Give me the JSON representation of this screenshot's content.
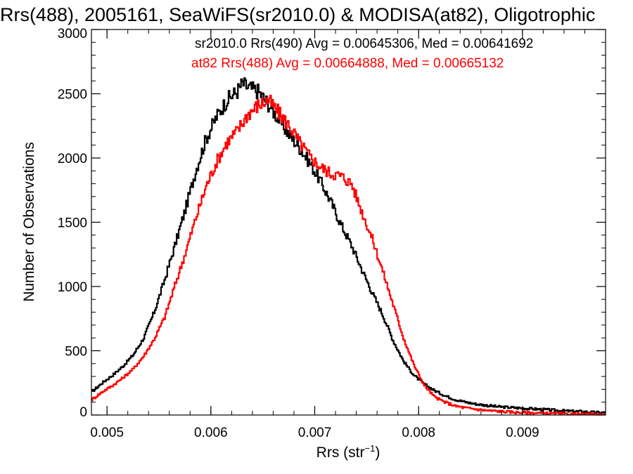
{
  "chart_data": {
    "type": "histogram",
    "title": "Rrs(488), 2005161, SeaWiFS(sr2010.0) & MODISA(at82), Oligotrophic",
    "xlabel_main": "Rrs (str",
    "xlabel_sup": "−1",
    "xlabel_close": ")",
    "ylabel": "Number of Observations",
    "xlim": [
      0.00485,
      0.0098
    ],
    "ylim": [
      0,
      3000
    ],
    "xticks": [
      0.005,
      0.006,
      0.007,
      0.008,
      0.009
    ],
    "xtick_labels": [
      "0.005",
      "0.006",
      "0.007",
      "0.008",
      "0.009"
    ],
    "xminor_step": 0.0002,
    "yticks": [
      0,
      500,
      1000,
      1500,
      2000,
      2500,
      3000
    ],
    "ytick_labels": [
      "0",
      "500",
      "1000",
      "1500",
      "2000",
      "2500",
      "3000"
    ],
    "yminor_step": 100,
    "grid": false,
    "series": [
      {
        "name": "sr2010.0",
        "color": "#000000",
        "legend": "sr2010.0 Rrs(490) Avg = 0.00645306, Med = 0.00641692",
        "x": [
          0.00485,
          0.00495,
          0.00505,
          0.00515,
          0.00525,
          0.00535,
          0.00545,
          0.00555,
          0.00565,
          0.00575,
          0.00585,
          0.00595,
          0.00605,
          0.00615,
          0.00625,
          0.0063,
          0.00635,
          0.00645,
          0.00655,
          0.00665,
          0.00675,
          0.00685,
          0.00695,
          0.00705,
          0.00715,
          0.00725,
          0.00735,
          0.00745,
          0.00755,
          0.00765,
          0.00775,
          0.00785,
          0.00795,
          0.00805,
          0.00815,
          0.00825,
          0.00835,
          0.00845,
          0.00855,
          0.00865,
          0.00875,
          0.00885,
          0.00895,
          0.00905,
          0.00915,
          0.00925,
          0.00935,
          0.00945,
          0.00955,
          0.00965,
          0.00975,
          0.0098
        ],
        "y": [
          180,
          250,
          310,
          380,
          470,
          600,
          800,
          1050,
          1320,
          1600,
          1900,
          2150,
          2320,
          2450,
          2520,
          2580,
          2550,
          2520,
          2420,
          2300,
          2180,
          2080,
          1960,
          1820,
          1660,
          1480,
          1320,
          1130,
          950,
          780,
          580,
          420,
          310,
          240,
          190,
          150,
          120,
          100,
          85,
          75,
          65,
          60,
          55,
          50,
          45,
          40,
          35,
          30,
          28,
          22,
          18,
          18
        ]
      },
      {
        "name": "at82",
        "color": "#ff0000",
        "legend": "at82 Rrs(488) Avg = 0.00664888, Med = 0.00665132",
        "x": [
          0.00485,
          0.00495,
          0.00505,
          0.00515,
          0.00525,
          0.00535,
          0.00545,
          0.00555,
          0.00565,
          0.00575,
          0.00585,
          0.00595,
          0.00605,
          0.00615,
          0.00625,
          0.00635,
          0.00645,
          0.00655,
          0.00665,
          0.00675,
          0.00685,
          0.00695,
          0.00705,
          0.00715,
          0.00725,
          0.00735,
          0.00745,
          0.00755,
          0.00765,
          0.00775,
          0.00785,
          0.00795,
          0.00805,
          0.00815,
          0.00825,
          0.00835,
          0.00845,
          0.00855,
          0.00865,
          0.00875,
          0.00885,
          0.00895,
          0.00905,
          0.00915,
          0.00925,
          0.00935,
          0.00945,
          0.00955,
          0.00965,
          0.00975,
          0.0098
        ],
        "y": [
          120,
          180,
          230,
          290,
          360,
          460,
          590,
          760,
          1010,
          1260,
          1530,
          1780,
          1970,
          2120,
          2210,
          2340,
          2410,
          2450,
          2350,
          2250,
          2120,
          2010,
          1930,
          1880,
          1860,
          1800,
          1580,
          1370,
          1120,
          860,
          600,
          390,
          230,
          140,
          100,
          70,
          55,
          45,
          35,
          30,
          25,
          20,
          18,
          15,
          12,
          10,
          8,
          6,
          5,
          4,
          4
        ]
      }
    ],
    "legend_placement": "top-right"
  }
}
